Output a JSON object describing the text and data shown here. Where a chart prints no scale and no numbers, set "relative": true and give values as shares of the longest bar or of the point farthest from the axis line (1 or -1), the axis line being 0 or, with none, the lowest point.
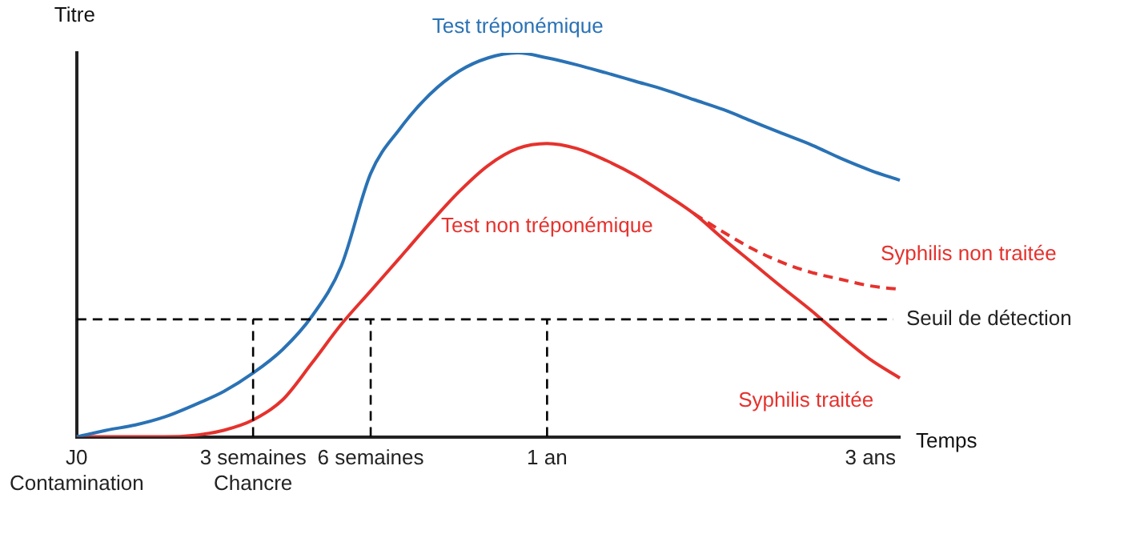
{
  "chart_data": {
    "type": "line",
    "relative": true,
    "xlabel": "Temps",
    "ylabel": "Titre",
    "categories": [
      "J0\nContamination",
      null,
      null,
      null,
      null,
      null,
      "3 semaines\nChancre",
      null,
      null,
      null,
      "6 semaines",
      null,
      null,
      null,
      null,
      null,
      "1 an",
      null,
      null,
      null,
      null,
      null,
      null,
      null,
      null,
      null,
      null,
      "3 ans",
      null
    ],
    "series": [
      {
        "name": "Test tréponémique",
        "color": "#2a72b5",
        "values": [
          0,
          0.017,
          0.031,
          0.052,
          0.083,
          0.118,
          0.166,
          0.227,
          0.314,
          0.445,
          0.686,
          0.803,
          0.891,
          0.952,
          0.987,
          1,
          0.987,
          0.969,
          0.948,
          0.926,
          0.904,
          0.878,
          0.852,
          0.821,
          0.79,
          0.76,
          0.725,
          0.694,
          0.668
        ]
      },
      {
        "name": "Test non tréponémique",
        "color": "#e5322d",
        "values": [
          0,
          0,
          0,
          0,
          0.004,
          0.017,
          0.044,
          0.096,
          0.192,
          0.293,
          0.38,
          0.467,
          0.555,
          0.638,
          0.707,
          0.751,
          0.764,
          0.751,
          0.72,
          0.681,
          0.633,
          0.581,
          0.515,
          0.452,
          0.389,
          0.328,
          0.262,
          0.201,
          0.153
        ]
      },
      {
        "name": "Syphilis non traitée",
        "color": "#e5322d",
        "line_style": "dashed",
        "values": [
          null,
          null,
          null,
          null,
          null,
          null,
          null,
          null,
          null,
          null,
          null,
          null,
          null,
          null,
          null,
          null,
          null,
          null,
          null,
          null,
          null,
          0.581,
          0.533,
          0.489,
          0.454,
          0.428,
          0.41,
          0.393,
          0.384
        ]
      }
    ],
    "annotations": [
      {
        "text": "Syphilis traitée",
        "x": "3 ans",
        "y": 0.201
      }
    ],
    "ref_lines": [
      {
        "axis": "y",
        "value": 0.306,
        "label": "Seuil de détection",
        "line_style": "dashed",
        "color": "#000000"
      },
      {
        "axis": "x",
        "value": "3 semaines\nChancre",
        "line_style": "dashed",
        "color": "#000000"
      },
      {
        "axis": "x",
        "value": "6 semaines",
        "line_style": "dashed",
        "color": "#000000"
      },
      {
        "axis": "x",
        "value": "1 an",
        "line_style": "dashed",
        "color": "#000000"
      }
    ],
    "legend": false,
    "grid": false,
    "marker": "none"
  }
}
